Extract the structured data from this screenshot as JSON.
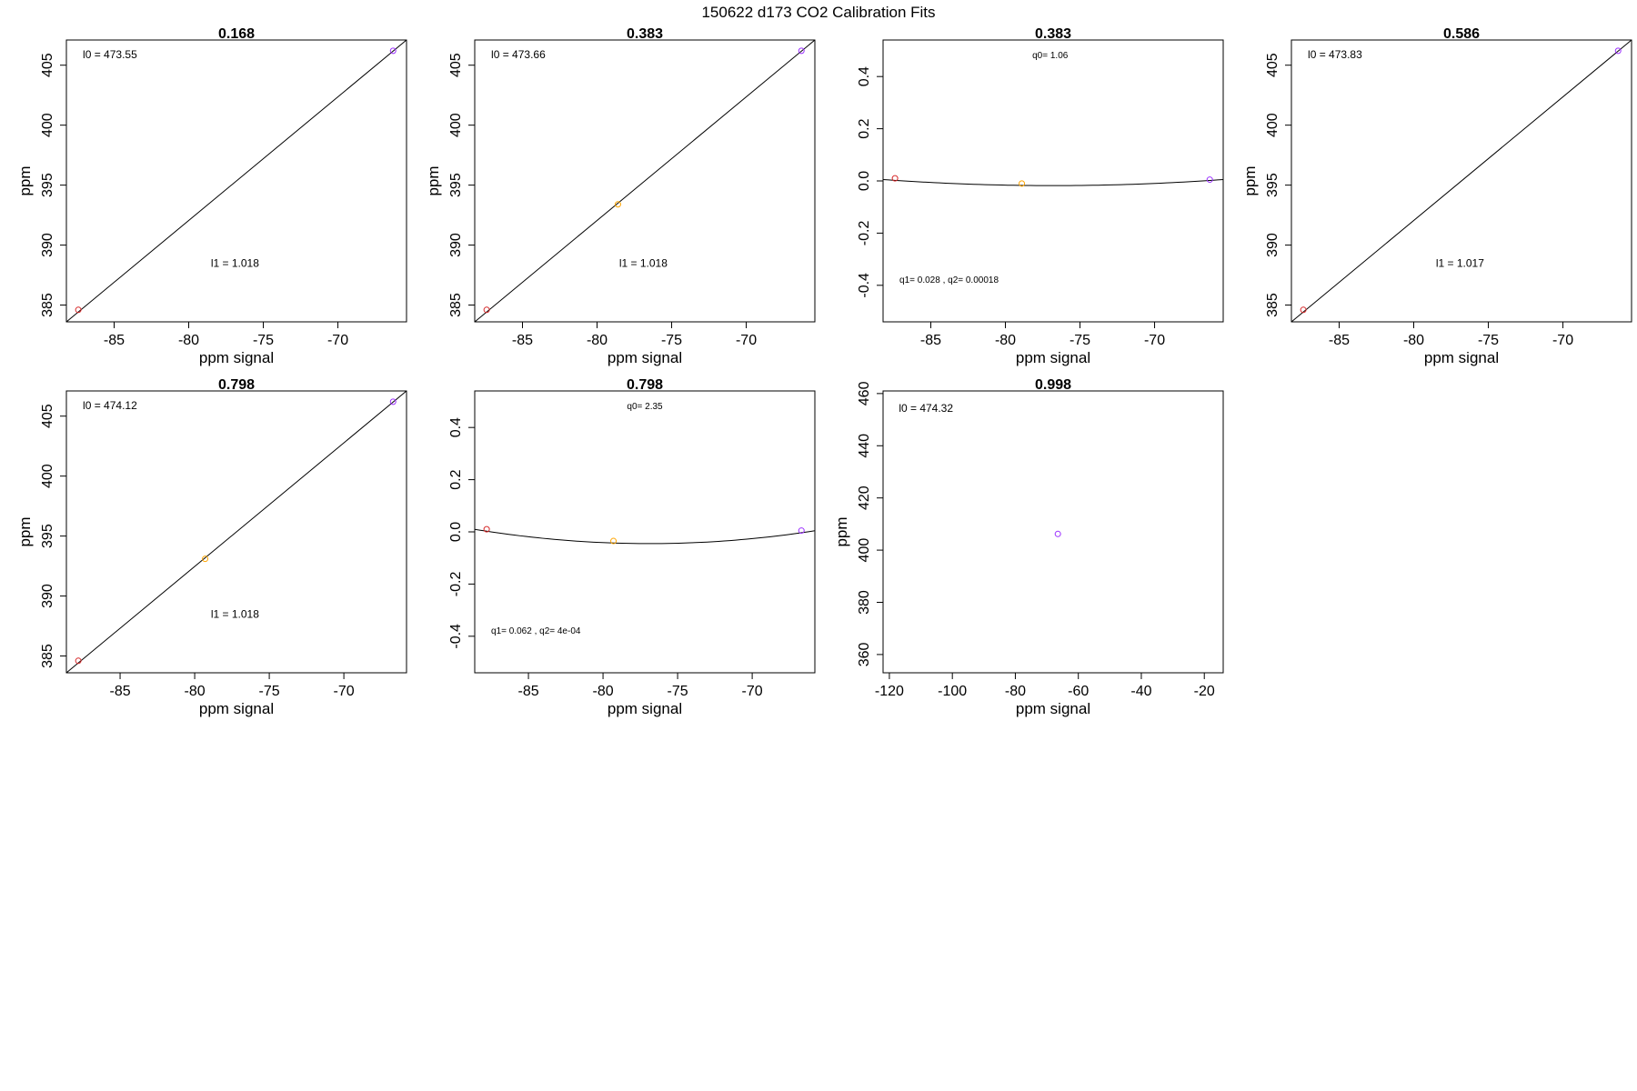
{
  "figure": {
    "title": "150622   d173   CO2 Calibration Fits"
  },
  "chart_data": [
    {
      "type": "scatter",
      "title": "0.168",
      "xlabel": "ppm signal",
      "ylabel": "ppm",
      "xlim": [
        -88.2,
        -65.4
      ],
      "ylim": [
        383.6,
        407.1
      ],
      "xticks": [
        -85,
        -80,
        -75,
        -70
      ],
      "yticks": [
        385,
        390,
        395,
        400,
        405
      ],
      "points": [
        {
          "x": -87.4,
          "y": 384.6,
          "color": "#d62728"
        },
        {
          "x": -66.3,
          "y": 406.2,
          "color": "#9b30ff"
        }
      ],
      "fit": {
        "kind": "linear",
        "x": [
          -88.2,
          -65.4
        ],
        "y": [
          383.6,
          407.1
        ]
      },
      "annotations": [
        {
          "text": "l0 =  473.55",
          "x": -87.1,
          "y": 405.6
        },
        {
          "text": "l1 =  1.018",
          "x": -76.9,
          "y": 388.2
        }
      ]
    },
    {
      "type": "scatter",
      "title": "0.383",
      "xlabel": "ppm signal",
      "ylabel": "ppm",
      "xlim": [
        -88.2,
        -65.4
      ],
      "ylim": [
        383.6,
        407.1
      ],
      "xticks": [
        -85,
        -80,
        -75,
        -70
      ],
      "yticks": [
        385,
        390,
        395,
        400,
        405
      ],
      "points": [
        {
          "x": -87.4,
          "y": 384.6,
          "color": "#d62728"
        },
        {
          "x": -78.6,
          "y": 393.4,
          "color": "#ffa500"
        },
        {
          "x": -66.3,
          "y": 406.2,
          "color": "#9b30ff"
        }
      ],
      "fit": {
        "kind": "linear",
        "x": [
          -88.2,
          -65.4
        ],
        "y": [
          383.6,
          407.1
        ]
      },
      "annotations": [
        {
          "text": "l0 =  473.66",
          "x": -87.1,
          "y": 405.6
        },
        {
          "text": "l1 =  1.018",
          "x": -76.9,
          "y": 388.2
        }
      ]
    },
    {
      "type": "scatter",
      "title": "0.383",
      "xlabel": "ppm signal",
      "ylabel": "",
      "xlim": [
        -88.2,
        -65.4
      ],
      "ylim": [
        -0.54,
        0.54
      ],
      "xticks": [
        -85,
        -80,
        -75,
        -70
      ],
      "yticks": [
        -0.4,
        -0.2,
        0.0,
        0.2,
        0.4
      ],
      "ytick_labels": [
        "-0.4",
        "-0.2",
        "0.0",
        "0.2",
        "0.4"
      ],
      "points": [
        {
          "x": -87.4,
          "y": 0.01,
          "color": "#d62728"
        },
        {
          "x": -78.9,
          "y": -0.01,
          "color": "#ffa500"
        },
        {
          "x": -66.3,
          "y": 0.005,
          "color": "#9b30ff"
        }
      ],
      "fit": {
        "kind": "quadratic",
        "vertex_x": -76.8,
        "min_y": -0.018,
        "a": 0.00018,
        "x": [
          -88.2,
          -65.4
        ]
      },
      "annotations": [
        {
          "text": "q0= 1.06",
          "x": -77.0,
          "y": 0.47
        },
        {
          "text": "q1= 0.028 , q2= 0.00018",
          "x": -87.1,
          "y": -0.39
        }
      ]
    },
    {
      "type": "scatter",
      "title": "0.586",
      "xlabel": "ppm signal",
      "ylabel": "ppm",
      "xlim": [
        -88.2,
        -65.4
      ],
      "ylim": [
        383.6,
        407.1
      ],
      "xticks": [
        -85,
        -80,
        -75,
        -70
      ],
      "yticks": [
        385,
        390,
        395,
        400,
        405
      ],
      "points": [
        {
          "x": -87.4,
          "y": 384.6,
          "color": "#d62728"
        },
        {
          "x": -66.3,
          "y": 406.2,
          "color": "#9b30ff"
        }
      ],
      "fit": {
        "kind": "linear",
        "x": [
          -88.2,
          -65.4
        ],
        "y": [
          383.6,
          407.1
        ]
      },
      "annotations": [
        {
          "text": "l0 =  473.83",
          "x": -87.1,
          "y": 405.6
        },
        {
          "text": "l1 =  1.017",
          "x": -76.9,
          "y": 388.2
        }
      ]
    },
    {
      "type": "scatter",
      "title": "0.798",
      "xlabel": "ppm signal",
      "ylabel": "ppm",
      "xlim": [
        -88.6,
        -65.8
      ],
      "ylim": [
        383.6,
        407.1
      ],
      "xticks": [
        -85,
        -80,
        -75,
        -70
      ],
      "yticks": [
        385,
        390,
        395,
        400,
        405
      ],
      "points": [
        {
          "x": -87.8,
          "y": 384.6,
          "color": "#d62728"
        },
        {
          "x": -79.3,
          "y": 393.1,
          "color": "#ffa500"
        },
        {
          "x": -66.7,
          "y": 406.2,
          "color": "#9b30ff"
        }
      ],
      "fit": {
        "kind": "linear",
        "x": [
          -88.6,
          -65.8
        ],
        "y": [
          383.6,
          407.1
        ]
      },
      "annotations": [
        {
          "text": "l0 =  474.12",
          "x": -87.5,
          "y": 405.6
        },
        {
          "text": "l1 =  1.018",
          "x": -77.3,
          "y": 388.2
        }
      ]
    },
    {
      "type": "scatter",
      "title": "0.798",
      "xlabel": "ppm signal",
      "ylabel": "",
      "xlim": [
        -88.6,
        -65.8
      ],
      "ylim": [
        -0.54,
        0.54
      ],
      "xticks": [
        -85,
        -80,
        -75,
        -70
      ],
      "yticks": [
        -0.4,
        -0.2,
        0.0,
        0.2,
        0.4
      ],
      "ytick_labels": [
        "-0.4",
        "-0.2",
        "0.0",
        "0.2",
        "0.4"
      ],
      "points": [
        {
          "x": -87.8,
          "y": 0.01,
          "color": "#d62728"
        },
        {
          "x": -79.3,
          "y": -0.035,
          "color": "#ffa500"
        },
        {
          "x": -66.7,
          "y": 0.005,
          "color": "#9b30ff"
        }
      ],
      "fit": {
        "kind": "quadratic",
        "vertex_x": -76.9,
        "min_y": -0.045,
        "a": 0.0004,
        "x": [
          -88.6,
          -65.8
        ]
      },
      "annotations": [
        {
          "text": "q0= 2.35",
          "x": -77.2,
          "y": 0.47
        },
        {
          "text": "q1= 0.062 , q2= 4e-04",
          "x": -87.5,
          "y": -0.39
        }
      ]
    },
    {
      "type": "scatter",
      "title": "0.998",
      "xlabel": "ppm signal",
      "ylabel": "ppm",
      "xlim": [
        -122,
        -14
      ],
      "ylim": [
        353,
        461
      ],
      "xticks": [
        -120,
        -100,
        -80,
        -60,
        -40,
        -20
      ],
      "yticks": [
        360,
        380,
        400,
        420,
        440,
        460
      ],
      "points": [
        {
          "x": -66.5,
          "y": 406.2,
          "color": "#9b30ff"
        }
      ],
      "annotations": [
        {
          "text": "l0 =  474.32",
          "x": -117,
          "y": 453
        }
      ]
    }
  ]
}
